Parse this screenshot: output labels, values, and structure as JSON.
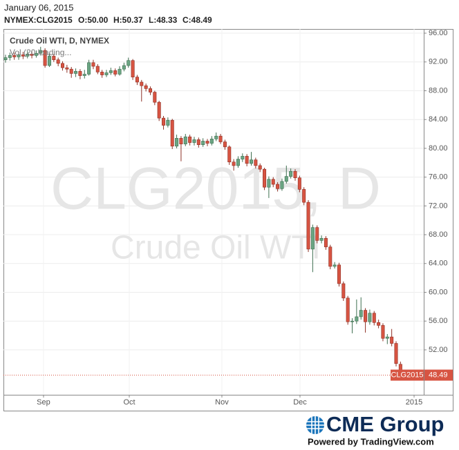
{
  "header": {
    "date": "January 06, 2015",
    "symbol": "NYMEX:CLG2015",
    "ohlc": [
      "O:50.00",
      "H:50.37",
      "L:48.33",
      "C:48.49"
    ]
  },
  "chart_data": {
    "type": "candlestick",
    "legend": "Crude Oil WTI, D, NYMEX",
    "volume_label": "Vol (20 loading...",
    "watermark": [
      "CLG2015, D",
      "Crude Oil WTI"
    ],
    "up_color": "#6ba583",
    "down_color": "#d75442",
    "grid": true,
    "xlim": [
      -0.47,
      95.3
    ],
    "xticks": [
      {
        "value": 8.66,
        "label": "Sep"
      },
      {
        "value": 28.2,
        "label": "Oct"
      },
      {
        "value": 49.3,
        "label": "Nov"
      },
      {
        "value": 67.1,
        "label": "Dec"
      },
      {
        "value": 93.1,
        "label": "2015"
      }
    ],
    "ylim": [
      45.76,
      96.58
    ],
    "yticks": [
      {
        "value": 52,
        "label": "52.00"
      },
      {
        "value": 56,
        "label": "56.00"
      },
      {
        "value": 60,
        "label": "60.00"
      },
      {
        "value": 64,
        "label": "64.00"
      },
      {
        "value": 68,
        "label": "68.00"
      },
      {
        "value": 72,
        "label": "72.00"
      },
      {
        "value": 76,
        "label": "76.00"
      },
      {
        "value": 80,
        "label": "80.00"
      },
      {
        "value": 84,
        "label": "84.00"
      },
      {
        "value": 88,
        "label": "88.00"
      },
      {
        "value": 92,
        "label": "92.00"
      },
      {
        "value": 96,
        "label": "96.00"
      }
    ],
    "open": [
      92.3,
      92.6,
      92.9,
      92.7,
      93.0,
      92.8,
      93.1,
      92.9,
      93.2,
      93.6,
      91.5,
      92.8,
      92.3,
      91.8,
      91.2,
      91.0,
      90.4,
      90.7,
      90.1,
      90.3,
      91.9,
      91.4,
      90.6,
      90.2,
      90.5,
      90.8,
      90.3,
      91.0,
      91.5,
      92.2,
      89.9,
      89.2,
      88.7,
      88.3,
      87.8,
      86.4,
      84.2,
      83.2,
      83.9,
      80.3,
      81.4,
      80.6,
      81.6,
      80.8,
      81.2,
      80.5,
      81.0,
      80.7,
      81.3,
      81.7,
      80.9,
      80.2,
      78.1,
      77.6,
      78.5,
      78.9,
      77.9,
      78.4,
      77.6,
      77.1,
      74.6,
      75.7,
      75.0,
      74.4,
      75.4,
      76.1,
      76.8,
      75.9,
      74.3,
      72.5,
      66.0,
      69.0,
      67.2,
      67.5,
      66.3,
      63.6,
      63.8,
      61.2,
      59.2,
      55.9,
      56.0,
      56.6,
      57.5,
      55.9,
      57.1,
      55.8,
      55.4,
      53.6,
      53.8,
      52.9,
      50.0
    ],
    "high": [
      93.0,
      93.3,
      93.3,
      93.4,
      93.4,
      93.5,
      93.5,
      93.6,
      94.1,
      93.9,
      93.2,
      93.1,
      92.6,
      92.1,
      91.6,
      91.3,
      91.1,
      91.0,
      90.9,
      92.3,
      92.3,
      91.7,
      90.9,
      90.9,
      91.2,
      91.1,
      91.4,
      91.9,
      92.6,
      92.4,
      90.2,
      89.5,
      89.0,
      88.6,
      88.0,
      86.6,
      84.5,
      84.3,
      84.1,
      81.9,
      81.7,
      82.0,
      81.9,
      81.6,
      81.5,
      81.4,
      81.3,
      81.7,
      82.2,
      82.0,
      81.2,
      80.4,
      78.5,
      78.9,
      79.3,
      79.2,
      79.5,
      78.7,
      77.9,
      77.3,
      76.1,
      76.0,
      75.3,
      75.8,
      77.6,
      77.2,
      77.1,
      76.2,
      74.6,
      72.8,
      69.4,
      69.3,
      67.9,
      67.8,
      66.6,
      64.2,
      64.1,
      61.5,
      59.5,
      56.4,
      59.0,
      59.3,
      57.8,
      57.6,
      57.4,
      56.2,
      55.7,
      54.2,
      54.9,
      53.2,
      50.37
    ],
    "low": [
      91.9,
      92.2,
      92.3,
      92.3,
      92.4,
      92.5,
      92.5,
      92.6,
      92.9,
      91.2,
      91.3,
      92.0,
      91.4,
      90.8,
      90.5,
      89.8,
      89.9,
      89.6,
      89.7,
      90.1,
      91.0,
      90.3,
      89.8,
      89.9,
      90.2,
      90.0,
      90.1,
      90.7,
      91.2,
      89.5,
      88.8,
      86.5,
      87.9,
      87.4,
      86.0,
      83.8,
      82.6,
      82.9,
      79.9,
      80.0,
      78.2,
      80.3,
      80.4,
      80.4,
      80.1,
      80.2,
      80.3,
      80.4,
      81.0,
      80.6,
      79.8,
      77.7,
      76.9,
      77.3,
      78.1,
      77.5,
      77.6,
      77.2,
      76.7,
      74.2,
      73.1,
      74.6,
      74.0,
      74.1,
      75.1,
      75.8,
      75.5,
      73.9,
      72.1,
      65.6,
      62.8,
      66.8,
      66.8,
      65.9,
      63.2,
      63.3,
      60.8,
      58.8,
      55.5,
      54.3,
      55.6,
      56.2,
      54.4,
      55.5,
      55.4,
      55.0,
      53.2,
      52.8,
      52.5,
      49.7,
      48.33
    ],
    "close": [
      92.6,
      92.9,
      92.7,
      93.0,
      92.8,
      93.1,
      92.9,
      93.2,
      93.6,
      91.5,
      92.8,
      92.3,
      91.8,
      91.2,
      91.0,
      90.4,
      90.7,
      90.1,
      90.3,
      91.9,
      91.4,
      90.6,
      90.2,
      90.5,
      90.8,
      90.3,
      91.0,
      91.5,
      92.2,
      89.9,
      89.2,
      88.7,
      88.3,
      87.8,
      86.4,
      84.2,
      83.2,
      83.9,
      80.3,
      81.4,
      80.6,
      81.6,
      80.8,
      81.2,
      80.5,
      81.0,
      80.7,
      81.3,
      81.7,
      80.9,
      80.2,
      78.1,
      77.6,
      78.5,
      78.9,
      77.9,
      78.4,
      77.6,
      77.1,
      74.6,
      75.7,
      75.0,
      74.4,
      75.4,
      76.1,
      76.8,
      75.9,
      74.3,
      72.5,
      66.0,
      69.0,
      67.2,
      67.5,
      66.3,
      63.6,
      63.8,
      61.2,
      59.2,
      55.9,
      56.0,
      56.6,
      57.5,
      55.9,
      57.1,
      55.8,
      55.4,
      53.6,
      53.8,
      52.9,
      50.1,
      48.49
    ],
    "last_price": {
      "name": "CLG2015",
      "value": 48.49
    }
  },
  "footer": {
    "brand": "CME Group",
    "powered": "Powered by TradingView.com"
  }
}
